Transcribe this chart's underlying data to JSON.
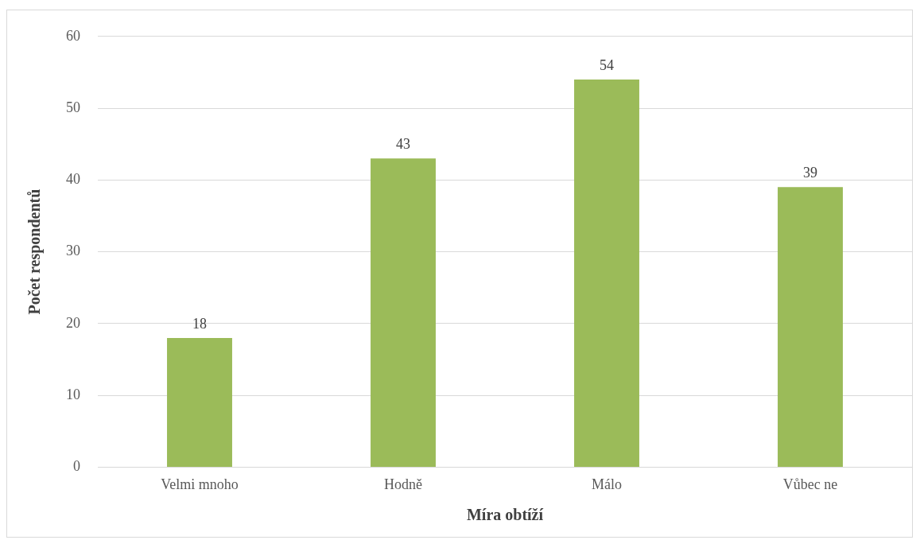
{
  "chart_data": {
    "type": "bar",
    "xlabel": "Míra obtíží",
    "ylabel": "Počet respondentů",
    "categories": [
      "Velmi mnoho",
      "Hodně",
      "Málo",
      "Vůbec ne"
    ],
    "values": [
      18,
      43,
      54,
      39
    ],
    "color": "#9bbb59",
    "ylim": [
      0,
      60
    ],
    "yticks": [
      0,
      10,
      20,
      30,
      40,
      50,
      60
    ],
    "grid": "y",
    "data_labels": true
  }
}
